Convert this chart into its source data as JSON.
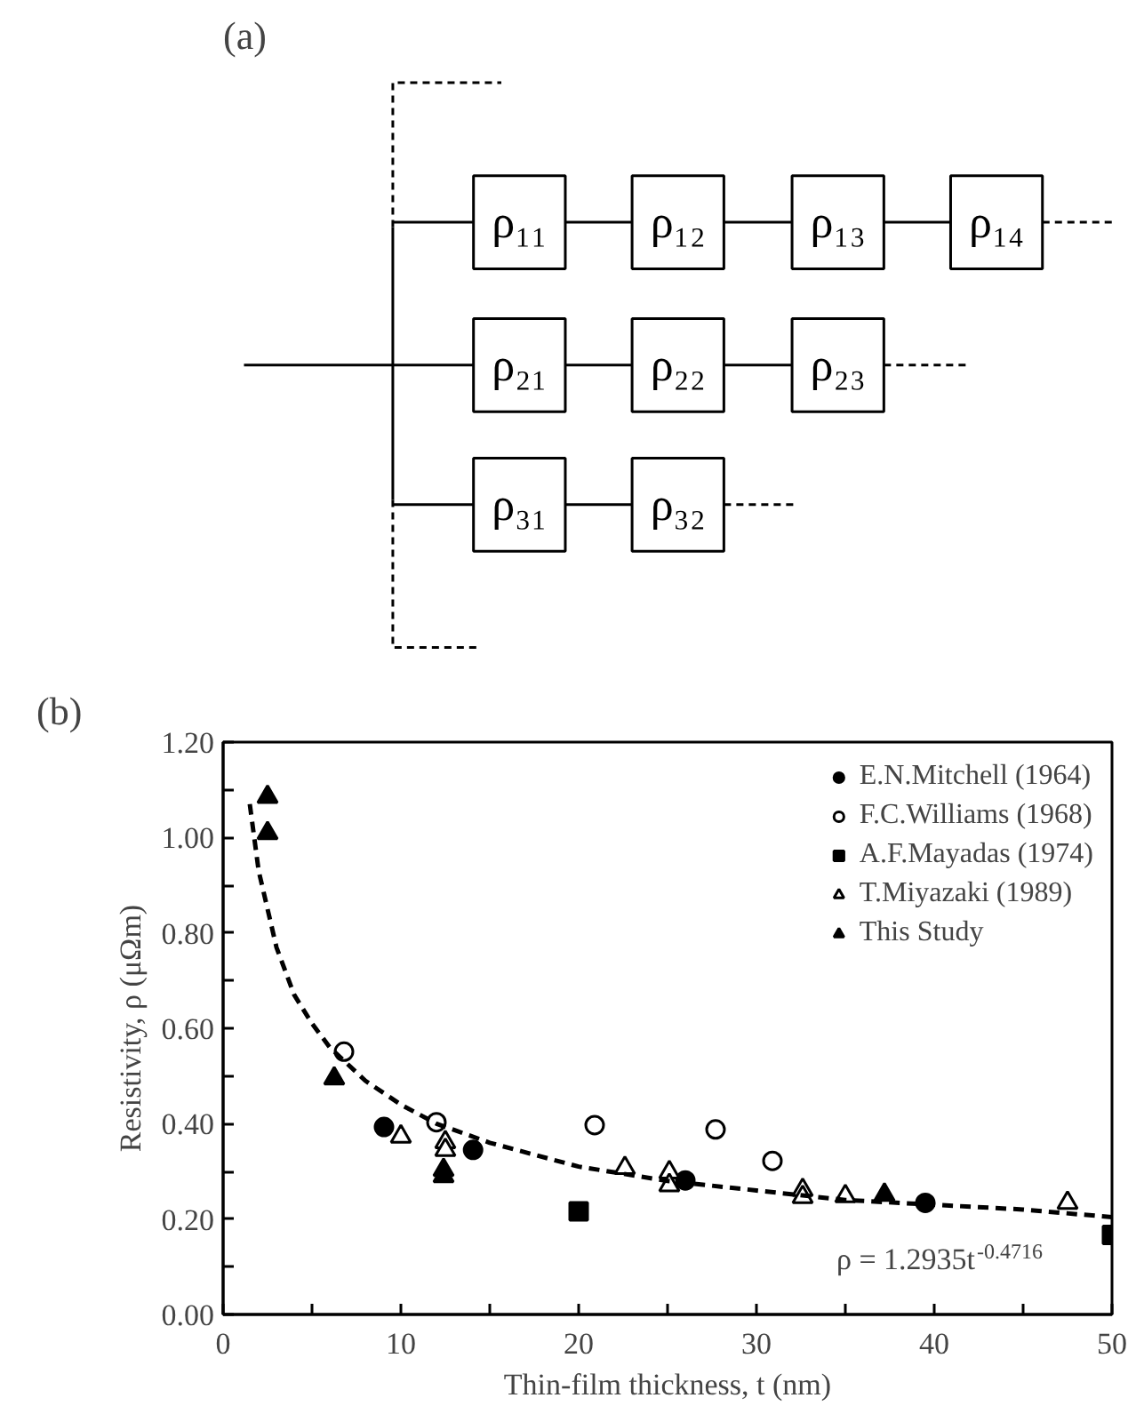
{
  "chart_data": [
    {
      "type": "other",
      "title": "(a)",
      "annotations": [
        "ρ₁₁",
        "ρ₁₂",
        "ρ₁₃",
        "ρ₁₄",
        "ρ₂₁",
        "ρ₂₂",
        "ρ₂₃",
        "ρ₃₁",
        "ρ₃₂"
      ]
    },
    {
      "type": "scatter",
      "title": "(b)",
      "xlabel": "Thin-film thickness, t (nm)",
      "ylabel": "Resistivity, ρ (μΩm)",
      "xlim": [
        0,
        50
      ],
      "ylim": [
        0,
        1.2
      ],
      "xticks": [
        0,
        {
          "value": 5,
          "label": null
        },
        10,
        {
          "value": 15,
          "label": null
        },
        20,
        {
          "value": 25,
          "label": null
        },
        30,
        {
          "value": 35,
          "label": null
        },
        40,
        {
          "value": 45,
          "label": null
        },
        50
      ],
      "yticks": [
        {
          "value": 0,
          "label": "0.00"
        },
        {
          "value": 0.1,
          "label": null
        },
        {
          "value": 0.2,
          "label": "0.20"
        },
        {
          "value": 0.3,
          "label": null
        },
        {
          "value": 0.4,
          "label": "0.40"
        },
        {
          "value": 0.5,
          "label": null
        },
        {
          "value": 0.6,
          "label": "0.60"
        },
        {
          "value": 0.7,
          "label": null
        },
        {
          "value": 0.8,
          "label": "0.80"
        },
        {
          "value": 0.9,
          "label": null
        },
        {
          "value": 1.0,
          "label": "1.00"
        },
        {
          "value": 1.1,
          "label": null
        },
        {
          "value": 1.2,
          "label": "1.20"
        }
      ],
      "grid": false,
      "legend": "top right",
      "annotations": [
        "ρ = 1.2935t$^{-0.4716}$"
      ],
      "series": [
        {
          "name": "E.N.Mitchell (1964)",
          "color": "#000000",
          "marker": "circle",
          "x": [
            9.05,
            14.06,
            26.0,
            39.5
          ],
          "values": [
            0.393,
            0.345,
            0.281,
            0.234
          ]
        },
        {
          "name": "F.C.Williams (1968)",
          "color": "#ffffff",
          "marker": "circle",
          "x": [
            6.8,
            12.0,
            20.9,
            27.7,
            30.9
          ],
          "values": [
            0.551,
            0.403,
            0.397,
            0.388,
            0.322
          ]
        },
        {
          "name": "A.F.Mayadas (1974)",
          "color": "#000000",
          "marker": "square",
          "x": [
            20.0,
            50.0
          ],
          "values": [
            0.216,
            0.167
          ]
        },
        {
          "name": "T.Miyazaki (1989)",
          "color": "#ffffff",
          "marker": "triangle",
          "x": [
            10.0,
            12.5,
            12.5,
            22.6,
            25.1,
            25.1,
            32.6,
            32.6,
            35.0,
            47.5
          ],
          "values": [
            0.373,
            0.361,
            0.345,
            0.307,
            0.298,
            0.271,
            0.261,
            0.246,
            0.248,
            0.234
          ]
        },
        {
          "name": "This Study",
          "color": "#000000",
          "marker": "triangle",
          "x": [
            2.5,
            2.5,
            6.25,
            12.4,
            12.4,
            37.2
          ],
          "values": [
            1.085,
            1.009,
            0.495,
            0.303,
            0.29,
            0.251
          ]
        },
        {
          "type": "line",
          "color": "#000000",
          "line_style": "dashed",
          "marker": "none",
          "x": [
            1.5,
            2,
            3,
            4,
            5,
            6,
            8,
            10,
            12,
            15,
            20,
            25,
            30,
            35,
            40,
            45,
            50
          ],
          "values": [
            1.07,
            0.93,
            0.77,
            0.67,
            0.61,
            0.56,
            0.49,
            0.44,
            0.4,
            0.36,
            0.31,
            0.28,
            0.26,
            0.24,
            0.23,
            0.22,
            0.204
          ]
        }
      ]
    }
  ]
}
